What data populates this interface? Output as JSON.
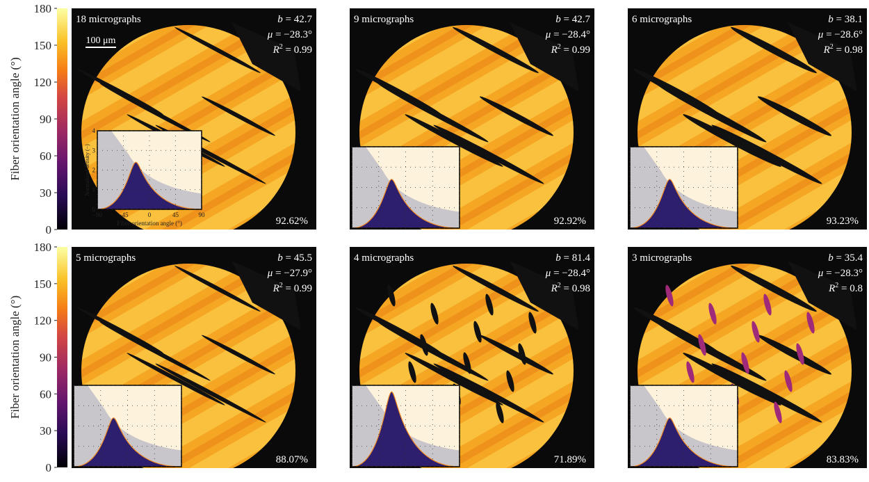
{
  "colorbar": {
    "label": "Fiber orientation angle (°)",
    "range": [
      0,
      180
    ],
    "ticks": [
      0,
      30,
      60,
      90,
      120,
      150,
      180
    ]
  },
  "scale_bar": "100 μm",
  "inset": {
    "x_label": "Fiber orientation angle (°)",
    "y_label": "Normalized density (−)",
    "xlim": [
      -90,
      90
    ],
    "xticks": [
      {
        "value": -90,
        "label": "−90"
      },
      {
        "value": -45,
        "label": "−45"
      },
      0,
      45,
      90
    ],
    "ylim": [
      0,
      4
    ],
    "yticks": [
      0,
      1,
      2,
      3,
      4
    ]
  },
  "panels": [
    {
      "title": "18 micrographs",
      "stats": [
        {
          "symbol": "b",
          "text": " = 42.7"
        },
        {
          "symbol": "μ",
          "text": " = −28.3°"
        },
        {
          "symbol": "R",
          "sup": "2",
          "text": " = 0.99"
        }
      ],
      "percent": "92.62%"
    },
    {
      "title": "9 micrographs",
      "stats": [
        {
          "symbol": "b",
          "text": " = 42.7"
        },
        {
          "symbol": "μ",
          "text": " = −28.4°"
        },
        {
          "symbol": "R",
          "sup": "2",
          "text": " = 0.99"
        }
      ],
      "percent": "92.92%"
    },
    {
      "title": "6 micrographs",
      "stats": [
        {
          "symbol": "b",
          "text": " = 38.1"
        },
        {
          "symbol": "μ",
          "text": " = −28.6°"
        },
        {
          "symbol": "R",
          "sup": "2",
          "text": " = 0.98"
        }
      ],
      "percent": "93.23%"
    },
    {
      "title": "5 micrographs",
      "stats": [
        {
          "symbol": "b",
          "text": " = 45.5"
        },
        {
          "symbol": "μ",
          "text": " = −27.9°"
        },
        {
          "symbol": "R",
          "sup": "2",
          "text": " = 0.99"
        }
      ],
      "percent": "88.07%"
    },
    {
      "title": "4 micrographs",
      "stats": [
        {
          "symbol": "b",
          "text": " = 81.4"
        },
        {
          "symbol": "μ",
          "text": " = −28.4°"
        },
        {
          "symbol": "R",
          "sup": "2",
          "text": " = 0.98"
        }
      ],
      "percent": "71.89%"
    },
    {
      "title": "3 micrographs",
      "stats": [
        {
          "symbol": "b",
          "text": " = 35.4"
        },
        {
          "symbol": "μ",
          "text": " = −28.3°"
        },
        {
          "symbol": "R",
          "sup": "2",
          "text": " = 0.8"
        }
      ],
      "percent": "83.83%"
    }
  ]
}
